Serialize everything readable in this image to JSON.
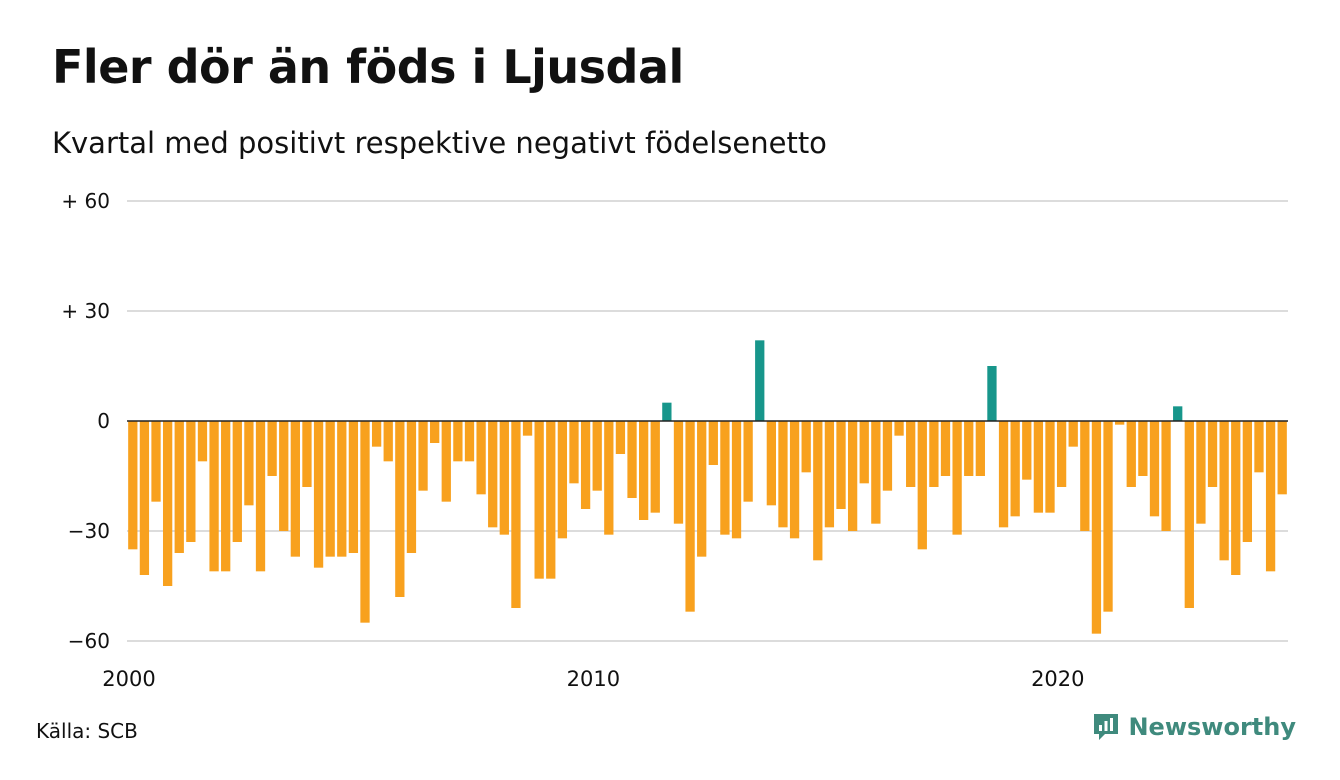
{
  "title": "Fler dör än föds i Ljusdal",
  "subtitle": "Kvartal med positivt respektive negativt födelsenetto",
  "source": "Källa: SCB",
  "brand": {
    "name": "Newsworthy",
    "icon": "newsworthy-logo-icon",
    "color": "#3f8a7d"
  },
  "colors": {
    "positive": "#17968b",
    "negative": "#f8a11e",
    "grid": "#dcdcdc",
    "zero": "#222222"
  },
  "chart_data": {
    "type": "bar",
    "title": "Fler dör än föds i Ljusdal",
    "subtitle": "Kvartal med positivt respektive negativt födelsenetto",
    "xlabel": "",
    "ylabel": "",
    "ylim": [
      -60,
      60
    ],
    "yticks": [
      {
        "value": 60,
        "label": "+ 60"
      },
      {
        "value": 30,
        "label": "+ 30"
      },
      {
        "value": 0,
        "label": "0"
      },
      {
        "value": -30,
        "label": "−30"
      },
      {
        "value": -60,
        "label": "−60"
      }
    ],
    "xticks": [
      {
        "index": 0,
        "label": "2000"
      },
      {
        "index": 40,
        "label": "2010"
      },
      {
        "index": 80,
        "label": "2020"
      }
    ],
    "first_quarter": "2000 Q1",
    "grid": true,
    "legend": "none",
    "values": [
      -35,
      -42,
      -22,
      -45,
      -36,
      -33,
      -11,
      -41,
      -41,
      -33,
      -23,
      -41,
      -15,
      -30,
      -37,
      -18,
      -40,
      -37,
      -37,
      -36,
      -55,
      -7,
      -11,
      -48,
      -36,
      -19,
      -6,
      -22,
      -11,
      -11,
      -20,
      -29,
      -31,
      -51,
      -4,
      -43,
      -43,
      -32,
      -17,
      -24,
      -19,
      -31,
      -9,
      -21,
      -27,
      -25,
      5,
      -28,
      -52,
      -37,
      -12,
      -31,
      -32,
      -22,
      22,
      -23,
      -29,
      -32,
      -14,
      -38,
      -29,
      -24,
      -30,
      -17,
      -28,
      -19,
      -4,
      -18,
      -35,
      -18,
      -15,
      -31,
      -15,
      -15,
      15,
      -29,
      -26,
      -16,
      -25,
      -25,
      -18,
      -7,
      -30,
      -58,
      -52,
      -1,
      -18,
      -15,
      -26,
      -30,
      4,
      -51,
      -28,
      -18,
      -38,
      -42,
      -33,
      -14,
      -41,
      -20
    ]
  }
}
